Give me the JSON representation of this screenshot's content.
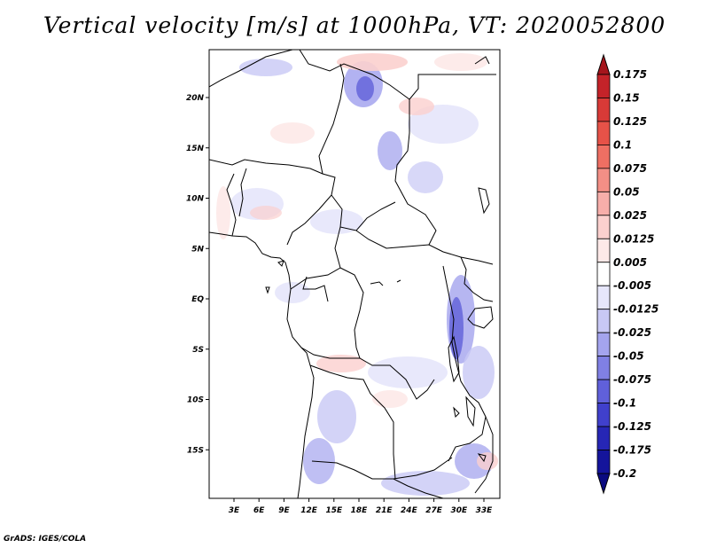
{
  "map": {
    "title": "Vertical velocity [m/s] at 1000hPa, VT: 2020052800",
    "variable": "Vertical velocity",
    "units": "m/s",
    "level": "1000hPa",
    "valid_time": "2020052800",
    "credit": "GrADS: IGES/COLA",
    "lat_labels": [
      "20N",
      "15N",
      "10N",
      "5N",
      "EQ",
      "5S",
      "10S",
      "15S"
    ],
    "lat_values": [
      20,
      15,
      10,
      5,
      0,
      -5,
      -10,
      -15
    ],
    "lon_labels": [
      "3E",
      "6E",
      "9E",
      "12E",
      "15E",
      "18E",
      "21E",
      "24E",
      "27E",
      "30E",
      "33E"
    ],
    "lon_values": [
      3,
      6,
      9,
      12,
      15,
      18,
      21,
      24,
      27,
      30,
      33
    ],
    "colorbar": {
      "labels": [
        "0.175",
        "0.15",
        "0.125",
        "0.1",
        "0.075",
        "0.05",
        "0.025",
        "0.0125",
        "0.005",
        "-0.005",
        "-0.0125",
        "-0.025",
        "-0.05",
        "-0.075",
        "-0.1",
        "-0.125",
        "-0.175",
        "-0.2"
      ],
      "colors": [
        "#a5151c",
        "#c42329",
        "#d83a37",
        "#e65248",
        "#ee6f63",
        "#f38f86",
        "#f7aeaa",
        "#fbd0ce",
        "#fde9e8",
        "#ffffff",
        "#e6e6fb",
        "#c8c8f5",
        "#a4a4ee",
        "#8080e4",
        "#6060da",
        "#4040cc",
        "#2626b5",
        "#14149b",
        "#0a0a80"
      ]
    }
  }
}
